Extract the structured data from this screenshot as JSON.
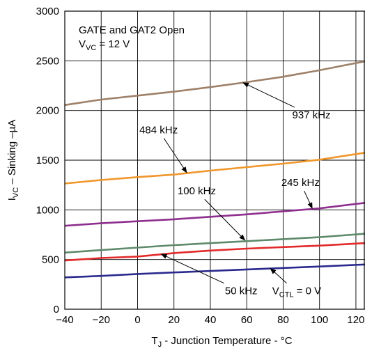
{
  "chart_data": {
    "type": "line",
    "title": "",
    "xlabel": {
      "main": "T",
      "sub": "J",
      "rest": " - Junction Temperature - °C"
    },
    "ylabel": {
      "main": "I",
      "sub": "VC",
      "rest": " – Sinking –µA"
    },
    "xlim": [
      -40,
      125
    ],
    "ylim": [
      0,
      3000
    ],
    "xticks": [
      -40,
      -20,
      0,
      20,
      40,
      60,
      80,
      100,
      120
    ],
    "xtick_labels": [
      "−40",
      "−20",
      "0",
      "20",
      "40",
      "60",
      "80",
      "100",
      "120"
    ],
    "yticks": [
      0,
      500,
      1000,
      1500,
      2000,
      2500,
      3000
    ],
    "ytick_labels": [
      "0",
      "500",
      "1000",
      "1500",
      "2000",
      "2500",
      "3000"
    ],
    "grid": true,
    "conditions": {
      "line1": "GATE and GAT2 Open",
      "line2": {
        "main": "V",
        "sub": "VC",
        "rest": " = 12 V"
      }
    },
    "series": [
      {
        "name": "937 kHz",
        "color": "#9E8068",
        "x": [
          -40,
          -20,
          0,
          20,
          40,
          60,
          80,
          100,
          125
        ],
        "y": [
          2055,
          2110,
          2150,
          2190,
          2235,
          2285,
          2340,
          2405,
          2495
        ]
      },
      {
        "name": "484 kHz",
        "color": "#F0962A",
        "x": [
          -40,
          -20,
          0,
          20,
          40,
          60,
          80,
          100,
          125
        ],
        "y": [
          1265,
          1300,
          1330,
          1355,
          1395,
          1430,
          1465,
          1505,
          1575
        ]
      },
      {
        "name": "245 kHz",
        "color": "#8E2E8E",
        "x": [
          -40,
          -20,
          0,
          20,
          40,
          60,
          80,
          100,
          125
        ],
        "y": [
          840,
          865,
          885,
          905,
          930,
          955,
          985,
          1015,
          1070
        ]
      },
      {
        "name": "100 kHz",
        "color": "#5E8A6A",
        "x": [
          -40,
          -20,
          0,
          20,
          40,
          60,
          80,
          100,
          125
        ],
        "y": [
          570,
          595,
          620,
          645,
          665,
          685,
          705,
          725,
          760
        ]
      },
      {
        "name": "50 kHz",
        "color": "#E32A2A",
        "x": [
          -40,
          -20,
          0,
          20,
          40,
          60,
          80,
          100,
          125
        ],
        "y": [
          490,
          515,
          530,
          565,
          590,
          610,
          625,
          640,
          665
        ]
      },
      {
        "name": "VCTL = 0 V",
        "color": "#2A2A8E",
        "x": [
          -40,
          -20,
          0,
          20,
          40,
          60,
          80,
          100,
          125
        ],
        "y": [
          320,
          335,
          355,
          370,
          385,
          400,
          415,
          430,
          450
        ]
      }
    ],
    "annotations": [
      {
        "text": "937 kHz",
        "series": "937 kHz",
        "text_x": 85,
        "text_y": 1920,
        "point_x": 58,
        "point_y": 2280
      },
      {
        "text": "484 kHz",
        "series": "484 kHz",
        "text_x": 1,
        "text_y": 1770,
        "point_x": 27,
        "point_y": 1375
      },
      {
        "text": "245 kHz",
        "series": "245 kHz",
        "text_x": 79,
        "text_y": 1240,
        "point_x": 96,
        "point_y": 1015
      },
      {
        "text": "100 kHz",
        "series": "100 kHz",
        "text_x": 22,
        "text_y": 1155,
        "point_x": 59,
        "point_y": 695
      },
      {
        "text": "50 kHz",
        "series": "50 kHz",
        "text_x": 48,
        "text_y": 150,
        "point_x": 13,
        "point_y": 555
      },
      {
        "text": {
          "main": "V",
          "sub": "CTL",
          "rest": " = 0 V"
        },
        "series": "VCTL = 0 V",
        "text_x": 74,
        "text_y": 150,
        "point_x": 73,
        "point_y": 410
      }
    ]
  }
}
